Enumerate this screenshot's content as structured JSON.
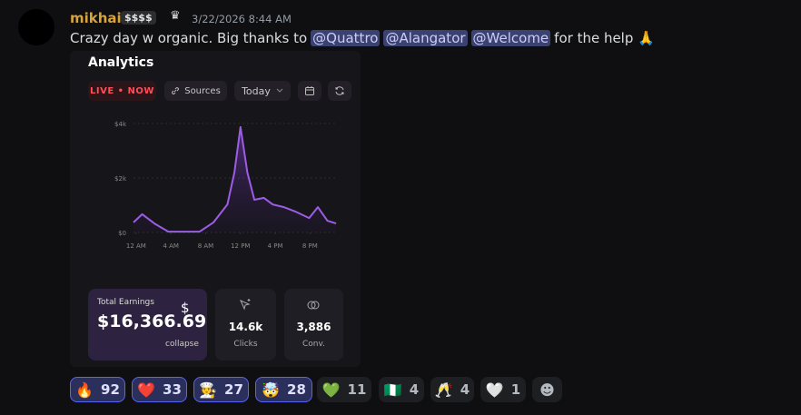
{
  "message": {
    "author": "mikhail",
    "badge": "$$$$",
    "timestamp": "3/22/2026 8:44 AM",
    "text_before": "Crazy day w organic. Big thanks to",
    "mentions": [
      "@Quattro",
      "@Alangator",
      "@Welcome"
    ],
    "text_after": "for the help 🙏"
  },
  "analytics": {
    "title": "Analytics",
    "live": "LIVE • NOW",
    "sources": "Sources",
    "range": "Today",
    "stats": [
      {
        "label": "Total Earnings",
        "value": "$16,366.69",
        "icon": "$",
        "action": "collapse"
      },
      {
        "value": "14.6k",
        "label": "Clicks"
      },
      {
        "value": "3,886",
        "label": "Conv."
      }
    ]
  },
  "chart_data": {
    "type": "line",
    "color": "#9b5de5",
    "x": [
      -0.3,
      0.7,
      2.1,
      3.7,
      5.2,
      7.3,
      8.9,
      10.5,
      11.3,
      12.0,
      12.8,
      13.6,
      14.7,
      15.7,
      17.0,
      18.3,
      19.9,
      20.9,
      22.0,
      23.0
    ],
    "values": [
      370,
      670,
      330,
      30,
      30,
      30,
      370,
      1030,
      2200,
      3870,
      2200,
      1200,
      1270,
      1030,
      930,
      770,
      530,
      930,
      430,
      330
    ],
    "xlim": [
      -0.3,
      23.2
    ],
    "xticks": [
      {
        "value": 0,
        "label": "12 AM"
      },
      {
        "value": 4,
        "label": "4 AM"
      },
      {
        "value": 8,
        "label": "8 AM"
      },
      {
        "value": 12,
        "label": "12 PM"
      },
      {
        "value": 16,
        "label": "4 PM"
      },
      {
        "value": 20,
        "label": "8 PM"
      }
    ],
    "ylim": [
      0,
      4000
    ],
    "yticks": [
      {
        "value": 0,
        "label": "$0"
      },
      {
        "value": 2000,
        "label": "$2k"
      },
      {
        "value": 4000,
        "label": "$4k"
      }
    ],
    "grid": true
  },
  "reactions": [
    {
      "emoji": "🔥",
      "count": 92,
      "selected": true
    },
    {
      "emoji": "❤️",
      "count": 33,
      "selected": true
    },
    {
      "emoji": "🧑‍🍳",
      "count": 27,
      "selected": true
    },
    {
      "emoji": "🤯",
      "count": 28,
      "selected": true
    },
    {
      "emoji": "💚",
      "count": 11,
      "selected": false
    },
    {
      "emoji": "🇳🇬",
      "count": 4,
      "selected": false
    },
    {
      "emoji": "🥂",
      "count": 4,
      "selected": false
    },
    {
      "emoji": "🤍",
      "count": 1,
      "selected": false
    }
  ]
}
